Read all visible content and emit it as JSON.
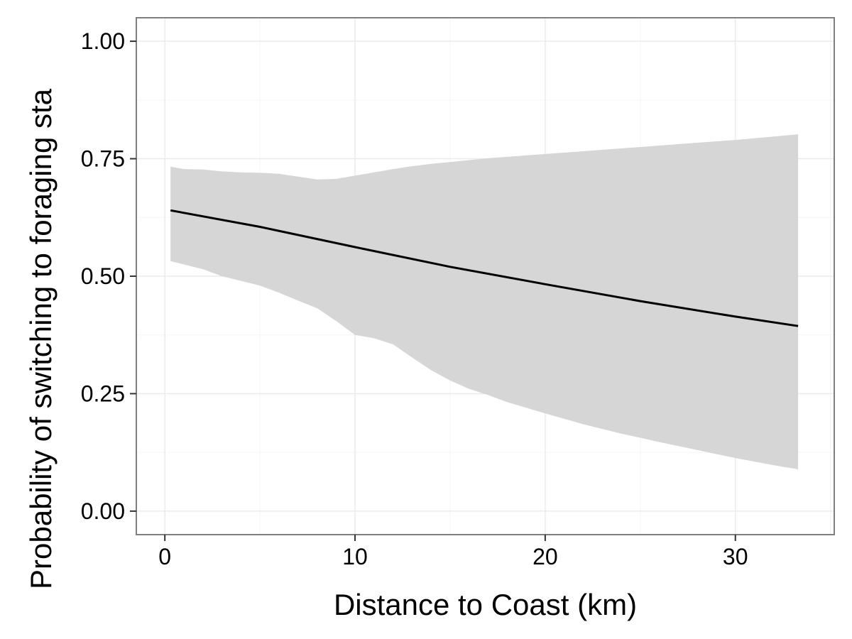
{
  "chart_data": {
    "type": "line",
    "title": "",
    "xlabel": "Distance to Coast (km)",
    "ylabel": "Probability of switching to foraging sta",
    "xlim": [
      -1.5,
      35.2
    ],
    "ylim": [
      -0.05,
      1.05
    ],
    "x_ticks": [
      0,
      10,
      20,
      30
    ],
    "x_tick_labels": [
      "0",
      "10",
      "20",
      "30"
    ],
    "y_ticks": [
      0,
      0.25,
      0.5,
      0.75,
      1.0
    ],
    "y_tick_labels": [
      "0.00",
      "0.25",
      "0.50",
      "0.75",
      "1.00"
    ],
    "grid": true,
    "legend": "none",
    "colors": {
      "line": "#000000",
      "ribbon": "#d6d6d6",
      "grid_major": "#ebebeb",
      "grid_minor": "#f5f5f5",
      "border": "#7f7f7f"
    },
    "series": [
      {
        "x": [
          0.3,
          5,
          10,
          15,
          20,
          25,
          30,
          33.3
        ],
        "y": [
          0.64,
          0.605,
          0.562,
          0.52,
          0.483,
          0.447,
          0.414,
          0.394
        ]
      }
    ],
    "ribbon": {
      "x": [
        0.3,
        1,
        2,
        3,
        4,
        5,
        6,
        7,
        8,
        9,
        10,
        11,
        12,
        13,
        14,
        15,
        16,
        17,
        18,
        19,
        20,
        22,
        24,
        26,
        28,
        30,
        32,
        33.3
      ],
      "upper": [
        0.733,
        0.728,
        0.727,
        0.723,
        0.721,
        0.72,
        0.718,
        0.712,
        0.706,
        0.707,
        0.714,
        0.721,
        0.728,
        0.734,
        0.739,
        0.743,
        0.747,
        0.751,
        0.754,
        0.757,
        0.76,
        0.766,
        0.772,
        0.778,
        0.784,
        0.79,
        0.797,
        0.802
      ],
      "lower": [
        0.532,
        0.525,
        0.515,
        0.5,
        0.49,
        0.48,
        0.465,
        0.448,
        0.432,
        0.405,
        0.375,
        0.368,
        0.355,
        0.327,
        0.3,
        0.278,
        0.26,
        0.247,
        0.232,
        0.22,
        0.208,
        0.185,
        0.165,
        0.147,
        0.13,
        0.113,
        0.098,
        0.089
      ]
    }
  }
}
